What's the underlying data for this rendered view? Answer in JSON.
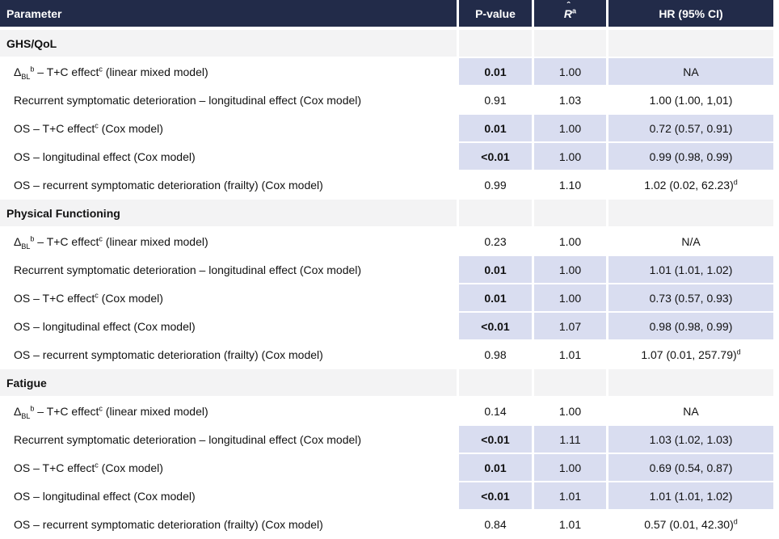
{
  "colors": {
    "header_bg": "#222B49",
    "header_text": "#FFFFFF",
    "section_bg": "#F3F3F4",
    "highlight_bg": "#D9DDF0",
    "body_text": "#111111"
  },
  "table": {
    "columns": [
      {
        "key": "param",
        "label": "Parameter",
        "align": "left"
      },
      {
        "key": "p",
        "label": "P-value",
        "align": "center"
      },
      {
        "key": "r",
        "label": "R",
        "hat": "ˆ",
        "sup": "a",
        "align": "center"
      },
      {
        "key": "hr",
        "label": "HR (95% CI)",
        "align": "center"
      }
    ],
    "sections": [
      {
        "title": "GHS/QoL",
        "rows": [
          {
            "param_parts": [
              {
                "t": "Δ"
              },
              {
                "sub": "BL"
              },
              {
                "sup": "b"
              },
              {
                "t": " – T+C effect"
              },
              {
                "sup": "c"
              },
              {
                "t": " (linear mixed model)"
              }
            ],
            "p": "0.01",
            "r": "1.00",
            "hr": "NA",
            "hr_sup": "",
            "highlight": true
          },
          {
            "param_parts": [
              {
                "t": "Recurrent symptomatic deterioration – longitudinal effect (Cox model)"
              }
            ],
            "p": "0.91",
            "r": "1.03",
            "hr": "1.00 (1.00, 1,01)",
            "hr_sup": "",
            "highlight": false
          },
          {
            "param_parts": [
              {
                "t": "OS – T+C effect"
              },
              {
                "sup": "c"
              },
              {
                "t": " (Cox model)"
              }
            ],
            "p": "0.01",
            "r": "1.00",
            "hr": "0.72 (0.57, 0.91)",
            "hr_sup": "",
            "highlight": true
          },
          {
            "param_parts": [
              {
                "t": "OS – longitudinal effect (Cox model)"
              }
            ],
            "p": "<0.01",
            "r": "1.00",
            "hr": "0.99 (0.98, 0.99)",
            "hr_sup": "",
            "highlight": true
          },
          {
            "param_parts": [
              {
                "t": "OS – recurrent symptomatic deterioration (frailty) (Cox model)"
              }
            ],
            "p": "0.99",
            "r": "1.10",
            "hr": "1.02 (0.02, 62.23)",
            "hr_sup": "d",
            "highlight": false
          }
        ]
      },
      {
        "title": "Physical Functioning",
        "rows": [
          {
            "param_parts": [
              {
                "t": "Δ"
              },
              {
                "sub": "BL"
              },
              {
                "sup": "b"
              },
              {
                "t": "  – T+C effect"
              },
              {
                "sup": "c"
              },
              {
                "t": " (linear mixed model)"
              }
            ],
            "p": "0.23",
            "r": "1.00",
            "hr": "N/A",
            "hr_sup": "",
            "highlight": false
          },
          {
            "param_parts": [
              {
                "t": "Recurrent symptomatic deterioration – longitudinal effect (Cox model)"
              }
            ],
            "p": "0.01",
            "r": "1.00",
            "hr": "1.01 (1.01, 1.02)",
            "hr_sup": "",
            "highlight": true
          },
          {
            "param_parts": [
              {
                "t": "OS – T+C effect"
              },
              {
                "sup": "c"
              },
              {
                "t": " (Cox model)"
              }
            ],
            "p": "0.01",
            "r": "1.00",
            "hr": "0.73 (0.57, 0.93)",
            "hr_sup": "",
            "highlight": true
          },
          {
            "param_parts": [
              {
                "t": "OS – longitudinal effect (Cox model)"
              }
            ],
            "p": "<0.01",
            "r": "1.07",
            "hr": "0.98 (0.98, 0.99)",
            "hr_sup": "",
            "highlight": true
          },
          {
            "param_parts": [
              {
                "t": "OS – recurrent symptomatic deterioration (frailty) (Cox model)"
              }
            ],
            "p": "0.98",
            "r": "1.01",
            "hr": "1.07 (0.01, 257.79)",
            "hr_sup": "d",
            "highlight": false
          }
        ]
      },
      {
        "title": "Fatigue",
        "rows": [
          {
            "param_parts": [
              {
                "t": "Δ"
              },
              {
                "sub": "BL"
              },
              {
                "sup": "b"
              },
              {
                "t": " – T+C effect"
              },
              {
                "sup": "c"
              },
              {
                "t": " (linear mixed model)"
              }
            ],
            "p": "0.14",
            "r": "1.00",
            "hr": "NA",
            "hr_sup": "",
            "highlight": false
          },
          {
            "param_parts": [
              {
                "t": "Recurrent symptomatic deterioration – longitudinal effect (Cox model)"
              }
            ],
            "p": "<0.01",
            "r": "1.11",
            "hr": "1.03 (1.02, 1.03)",
            "hr_sup": "",
            "highlight": true
          },
          {
            "param_parts": [
              {
                "t": "OS – T+C effect"
              },
              {
                "sup": "c"
              },
              {
                "t": " (Cox model)"
              }
            ],
            "p": "0.01",
            "r": "1.00",
            "hr": "0.69 (0.54, 0.87)",
            "hr_sup": "",
            "highlight": true
          },
          {
            "param_parts": [
              {
                "t": "OS – longitudinal effect (Cox model)"
              }
            ],
            "p": "<0.01",
            "r": "1.01",
            "hr": "1.01 (1.01, 1.02)",
            "hr_sup": "",
            "highlight": true
          },
          {
            "param_parts": [
              {
                "t": "OS – recurrent symptomatic deterioration (frailty) (Cox model)"
              }
            ],
            "p": "0.84",
            "r": "1.01",
            "hr": "0.57 (0.01, 42.30)",
            "hr_sup": "d",
            "highlight": false
          }
        ]
      }
    ]
  }
}
